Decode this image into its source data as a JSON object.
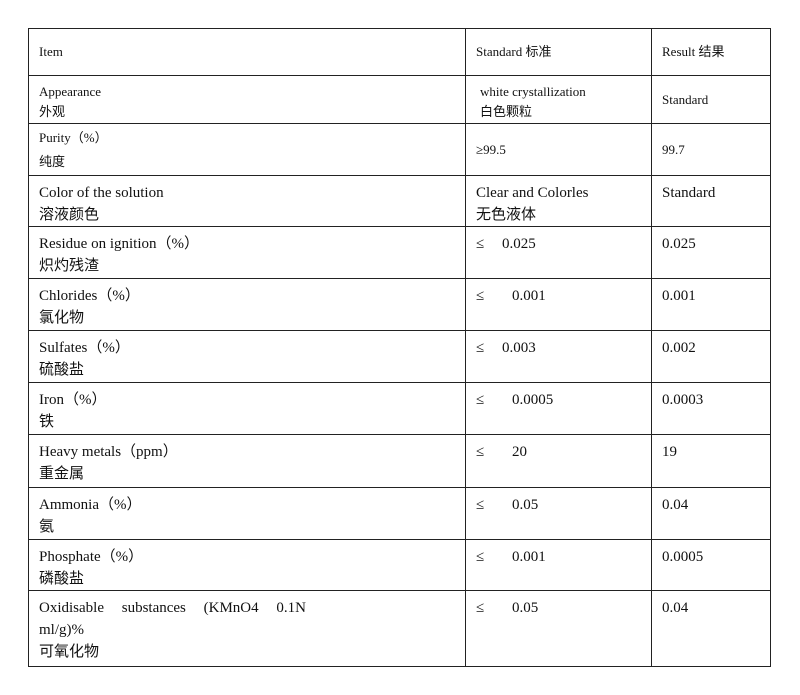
{
  "header": {
    "item": "Item",
    "standard": "Standard  标准",
    "result": "Result  结果"
  },
  "rows": [
    {
      "en": "Appearance",
      "zh": "外观",
      "standard_en": "white crystallization",
      "standard_zh": "白色颗粒",
      "result": "Standard"
    },
    {
      "en": "Purity（%）",
      "zh": "纯度",
      "standard": "≥99.5",
      "result": "99.7"
    },
    {
      "en": "Color of the solution",
      "zh": "溶液颜色",
      "standard_en": "Clear and Colorles",
      "standard_zh": "无色液体",
      "result": "Standard"
    },
    {
      "en": "Residue on ignition（%）",
      "zh": "炽灼残渣",
      "symbol": "≤",
      "standard": "0.025",
      "result": "0.025"
    },
    {
      "en": "Chlorides（%）",
      "zh": "氯化物",
      "symbol": "≤",
      "standard": "0.001",
      "result": "0.001"
    },
    {
      "en": "Sulfates（%）",
      "zh": "硫酸盐",
      "symbol": "≤",
      "standard": "0.003",
      "result": "0.002"
    },
    {
      "en": "Iron（%）",
      "zh": "铁",
      "symbol": "≤",
      "standard": "0.0005",
      "result": "0.0003"
    },
    {
      "en": "Heavy metals（ppm）",
      "zh": "重金属",
      "symbol": "≤",
      "standard": "20",
      "result": "19"
    },
    {
      "en": "Ammonia（%）",
      "zh": "氨",
      "symbol": "≤",
      "standard": "0.05",
      "result": "0.04"
    },
    {
      "en": "Phosphate（%）",
      "zh": "磷酸盐",
      "symbol": "≤",
      "standard": "0.001",
      "result": "0.0005"
    },
    {
      "en": "Oxidisable substances (KMnO4 0.1N",
      "en2": "ml/g)%",
      "zh": "可氧化物",
      "symbol": "≤",
      "standard": "0.05",
      "result": "0.04"
    }
  ]
}
